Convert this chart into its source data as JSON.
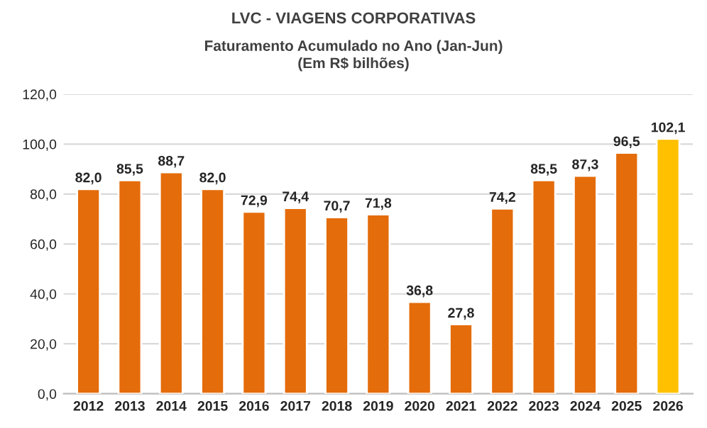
{
  "chart_data": {
    "type": "bar",
    "title": "LVC - VIAGENS CORPORATIVAS",
    "subtitle": "Faturamento Acumulado no Ano (Jan-Jun)\n(Em R$ bilhões)",
    "categories": [
      "2012",
      "2013",
      "2014",
      "2015",
      "2016",
      "2017",
      "2018",
      "2019",
      "2020",
      "2021",
      "2022",
      "2023",
      "2024",
      "2025",
      "2026"
    ],
    "values": [
      82.0,
      85.5,
      88.7,
      82.0,
      72.9,
      74.4,
      70.7,
      71.8,
      36.8,
      27.8,
      74.2,
      85.5,
      87.3,
      96.5,
      102.1
    ],
    "colors": [
      "#e46c0a",
      "#e46c0a",
      "#e46c0a",
      "#e46c0a",
      "#e46c0a",
      "#e46c0a",
      "#e46c0a",
      "#e46c0a",
      "#e46c0a",
      "#e46c0a",
      "#e46c0a",
      "#e46c0a",
      "#e46c0a",
      "#e46c0a",
      "#ffc000"
    ],
    "value_labels": [
      "82,0",
      "85,5",
      "88,7",
      "82,0",
      "72,9",
      "74,4",
      "70,7",
      "71,8",
      "36,8",
      "27,8",
      "74,2",
      "85,5",
      "87,3",
      "96,5",
      "102,1"
    ],
    "ylim": [
      0,
      120
    ],
    "yticks": [
      {
        "value": 0,
        "label": "0,0"
      },
      {
        "value": 20,
        "label": "20,0"
      },
      {
        "value": 40,
        "label": "40,0"
      },
      {
        "value": 60,
        "label": "60,0"
      },
      {
        "value": 80,
        "label": "80,0"
      },
      {
        "value": 100,
        "label": "100,0"
      },
      {
        "value": 120,
        "label": "120,0"
      }
    ],
    "grid": "y"
  }
}
